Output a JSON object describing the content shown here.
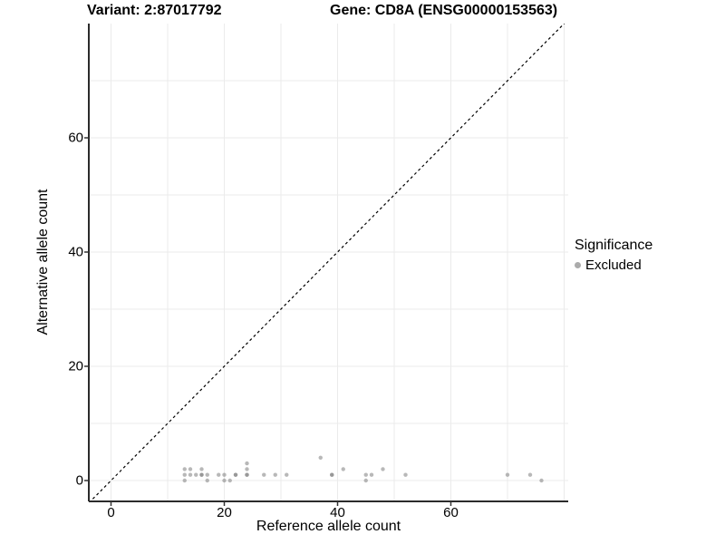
{
  "titles": {
    "variant": "Variant: 2:87017792",
    "gene": "Gene: CD8A (ENSG00000153563)"
  },
  "chart_data": {
    "type": "scatter",
    "xlabel": "Reference allele count",
    "ylabel": "Alternative allele count",
    "xlim": [
      -3.9,
      80.7
    ],
    "ylim": [
      -3.7,
      80
    ],
    "x_ticks": [
      0,
      20,
      40,
      60
    ],
    "y_ticks": [
      0,
      20,
      40,
      60
    ],
    "grid": {
      "step": 10,
      "color": "#ebebeb",
      "shown": true
    },
    "reference_line": {
      "kind": "identity y=x",
      "style": "dashed",
      "color": "#000000"
    },
    "series": [
      {
        "name": "Excluded",
        "point_color_rgba": "rgba(125,125,125,0.55)",
        "points": [
          [
            13,
            2
          ],
          [
            14,
            2
          ],
          [
            16,
            2
          ],
          [
            13,
            1
          ],
          [
            14,
            1
          ],
          [
            15,
            1
          ],
          [
            16,
            1
          ],
          [
            16,
            1
          ],
          [
            17,
            1
          ],
          [
            13,
            0
          ],
          [
            17,
            0
          ],
          [
            19,
            1
          ],
          [
            20,
            1
          ],
          [
            20,
            0
          ],
          [
            21,
            0
          ],
          [
            22,
            1
          ],
          [
            22,
            1
          ],
          [
            24,
            3
          ],
          [
            24,
            2
          ],
          [
            24,
            1
          ],
          [
            24,
            1
          ],
          [
            27,
            1
          ],
          [
            29,
            1
          ],
          [
            31,
            1
          ],
          [
            37,
            4
          ],
          [
            39,
            1
          ],
          [
            39,
            1
          ],
          [
            41,
            2
          ],
          [
            45,
            1
          ],
          [
            46,
            1
          ],
          [
            45,
            0
          ],
          [
            48,
            2
          ],
          [
            52,
            1
          ],
          [
            70,
            1
          ],
          [
            74,
            1
          ],
          [
            76,
            0
          ]
        ]
      }
    ],
    "legend": {
      "title": "Significance",
      "position": "right",
      "entries": [
        {
          "label": "Excluded",
          "color": "#ababab"
        }
      ]
    },
    "axis_color": "#2b2b2b",
    "tick_color": "#333333"
  }
}
